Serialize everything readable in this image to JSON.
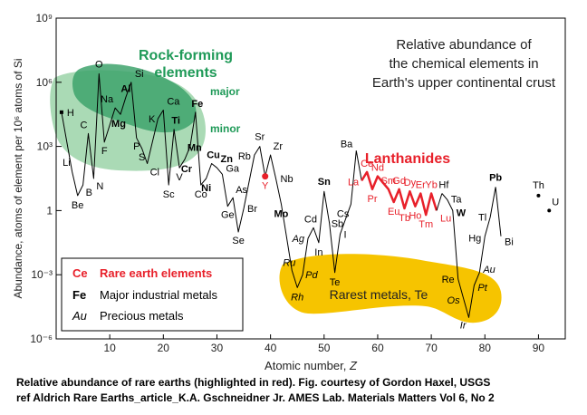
{
  "chart_data": {
    "type": "line",
    "title": "Relative abundance of the chemical elements in Earth's upper continental crust",
    "title_lines": [
      "Relative abundance of",
      "the chemical elements in",
      "Earth's upper continental crust"
    ],
    "xlabel": "Atomic number, Z",
    "ylabel": "Abundance, atoms of element per 10⁶ atoms of Si",
    "xlim": [
      0,
      95
    ],
    "ylim_log10": [
      -6,
      9
    ],
    "y_scale": "log",
    "xticks": [
      10,
      20,
      30,
      40,
      50,
      60,
      70,
      80,
      90
    ],
    "yticks": [
      {
        "exp": -6,
        "label": "10⁻⁶"
      },
      {
        "exp": -3,
        "label": "10⁻³"
      },
      {
        "exp": 0,
        "label": "1"
      },
      {
        "exp": 3,
        "label": "10³"
      },
      {
        "exp": 6,
        "label": "10⁶"
      },
      {
        "exp": 9,
        "label": "10⁹"
      }
    ],
    "grid": false,
    "legend": {
      "position": "bottom-left",
      "entries": [
        {
          "symbol": "Ce",
          "label": "Rare earth elements",
          "style": "rare-earth"
        },
        {
          "symbol": "Fe",
          "label": "Major industrial metals",
          "style": "major"
        },
        {
          "symbol": "Au",
          "label": "Precious metals",
          "style": "precious"
        }
      ]
    },
    "regions": [
      {
        "label": "Rock-forming elements",
        "color": "#1f9a58"
      },
      {
        "label": "major",
        "color": "#1f9a58"
      },
      {
        "label": "minor",
        "color": "#1f9a58"
      },
      {
        "label": "Lanthanides",
        "color": "#e8202a"
      },
      {
        "label": "Rarest metals, Te",
        "color": "#f3c200"
      }
    ],
    "colors": {
      "main_line": "#000000",
      "rare_earth": "#e8202a",
      "rock_dark": "#2e9a60",
      "rock_light": "#8fcf9f",
      "rarest": "#f6c400"
    },
    "series": [
      {
        "points": [
          {
            "z": 1,
            "y": 4.6,
            "label": "H"
          },
          {
            "z": 3,
            "y": 1.8,
            "label": "Li"
          },
          {
            "z": 4,
            "y": 0.7,
            "label": "Be"
          },
          {
            "z": 5,
            "y": 1.2,
            "label": "B"
          },
          {
            "z": 6,
            "y": 3.6,
            "label": "C"
          },
          {
            "z": 7,
            "y": 1.5,
            "label": "N"
          },
          {
            "z": 8,
            "y": 6.4,
            "label": "O"
          },
          {
            "z": 9,
            "y": 3.2,
            "label": "F"
          },
          {
            "z": 11,
            "y": 4.8,
            "label": "Na"
          },
          {
            "z": 12,
            "y": 4.5,
            "label": "Mg"
          },
          {
            "z": 13,
            "y": 5.3,
            "label": "Al"
          },
          {
            "z": 14,
            "y": 6.0,
            "label": "Si"
          },
          {
            "z": 15,
            "y": 3.4,
            "label": "P"
          },
          {
            "z": 16,
            "y": 2.9,
            "label": "S"
          },
          {
            "z": 17,
            "y": 2.2,
            "label": "Cl"
          },
          {
            "z": 19,
            "y": 4.3,
            "label": "K"
          },
          {
            "z": 20,
            "y": 4.7,
            "label": "Ca"
          },
          {
            "z": 21,
            "y": 1.2,
            "label": "Sc"
          },
          {
            "z": 22,
            "y": 3.8,
            "label": "Ti"
          },
          {
            "z": 23,
            "y": 2.0,
            "label": "V"
          },
          {
            "z": 24,
            "y": 2.4,
            "label": "Cr"
          },
          {
            "z": 25,
            "y": 3.0,
            "label": "Mn"
          },
          {
            "z": 26,
            "y": 4.6,
            "label": "Fe"
          },
          {
            "z": 27,
            "y": 1.2,
            "label": "Co"
          },
          {
            "z": 28,
            "y": 1.5,
            "label": "Ni"
          },
          {
            "z": 29,
            "y": 2.2,
            "label": "Cu"
          },
          {
            "z": 30,
            "y": 2.0,
            "label": "Zn"
          },
          {
            "z": 31,
            "y": 1.7,
            "label": "Ga"
          },
          {
            "z": 32,
            "y": 0.2,
            "label": "Ge"
          },
          {
            "z": 33,
            "y": 0.6,
            "label": "As"
          },
          {
            "z": 34,
            "y": -1.0,
            "label": "Se"
          },
          {
            "z": 35,
            "y": 0.1,
            "label": "Br"
          },
          {
            "z": 37,
            "y": 2.6,
            "label": "Rb"
          },
          {
            "z": 38,
            "y": 3.0,
            "label": "Sr"
          },
          {
            "z": 39,
            "y": 1.6,
            "label": "Y"
          },
          {
            "z": 40,
            "y": 2.6,
            "label": "Zr"
          },
          {
            "z": 41,
            "y": 1.5,
            "label": "Nb"
          },
          {
            "z": 42,
            "y": 0.3,
            "label": "Mo"
          },
          {
            "z": 44,
            "y": -2.8,
            "label": "Ru"
          },
          {
            "z": 45,
            "y": -3.6,
            "label": "Rh"
          },
          {
            "z": 46,
            "y": -3.0,
            "label": "Pd"
          },
          {
            "z": 47,
            "y": -1.3,
            "label": "Ag"
          },
          {
            "z": 48,
            "y": -0.8,
            "label": "Cd"
          },
          {
            "z": 49,
            "y": -1.5,
            "label": "In"
          },
          {
            "z": 50,
            "y": 0.9,
            "label": "Sn"
          },
          {
            "z": 51,
            "y": -0.6,
            "label": "Sb"
          },
          {
            "z": 52,
            "y": -2.9,
            "label": "Te"
          },
          {
            "z": 53,
            "y": -1.1,
            "label": "I"
          },
          {
            "z": 55,
            "y": 0.3,
            "label": "Cs"
          },
          {
            "z": 56,
            "y": 2.8,
            "label": "Ba"
          },
          {
            "z": 82,
            "y": 1.1,
            "label": "Pb"
          },
          {
            "z": 83,
            "y": -1.2,
            "label": "Bi"
          }
        ]
      },
      {
        "name": "Lanthanides",
        "points": [
          {
            "z": 57,
            "y": 1.4,
            "label": "La"
          },
          {
            "z": 58,
            "y": 1.8,
            "label": "Ce"
          },
          {
            "z": 59,
            "y": 1.0,
            "label": "Pr"
          },
          {
            "z": 60,
            "y": 1.6,
            "label": "Nd"
          },
          {
            "z": 62,
            "y": 1.0,
            "label": "Sm"
          },
          {
            "z": 63,
            "y": 0.4,
            "label": "Eu"
          },
          {
            "z": 64,
            "y": 1.0,
            "label": "Gd"
          },
          {
            "z": 65,
            "y": 0.1,
            "label": "Tb"
          },
          {
            "z": 66,
            "y": 0.9,
            "label": "Dy"
          },
          {
            "z": 67,
            "y": 0.2,
            "label": "Ho"
          },
          {
            "z": 68,
            "y": 0.8,
            "label": "Er"
          },
          {
            "z": 69,
            "y": -0.2,
            "label": "Tm"
          },
          {
            "z": 70,
            "y": 0.8,
            "label": "Yb"
          },
          {
            "z": 71,
            "y": 0.0,
            "label": "Lu"
          }
        ]
      },
      {
        "points": [
          {
            "z": 72,
            "y": 0.8,
            "label": "Hf"
          },
          {
            "z": 73,
            "y": 0.5,
            "label": "Ta"
          },
          {
            "z": 74,
            "y": 0.0,
            "label": "W"
          },
          {
            "z": 75,
            "y": -3.2,
            "label": "Re"
          },
          {
            "z": 76,
            "y": -4.1,
            "label": "Os"
          },
          {
            "z": 77,
            "y": -5.0,
            "label": "Ir"
          },
          {
            "z": 78,
            "y": -3.5,
            "label": "Pt"
          },
          {
            "z": 79,
            "y": -2.9,
            "label": "Au"
          },
          {
            "z": 80,
            "y": -1.2,
            "label": "Hg"
          },
          {
            "z": 81,
            "y": -0.3,
            "label": "Tl"
          },
          {
            "z": 82,
            "y": 1.1,
            "label": "Pb"
          }
        ]
      }
    ],
    "isolated_points": [
      {
        "z": 90,
        "y": 0.7,
        "label": "Th"
      },
      {
        "z": 92,
        "y": 0.0,
        "label": "U"
      }
    ]
  },
  "caption": {
    "line1": "Relative abundance of rare earths (highlighted in red). Fig. courtesy of Gordon Haxel, USGS",
    "line2": "ref Aldrich Rare Earths_article_K.A. Gschneidner Jr. AMES Lab. Materials Matters Vol 6, No 2"
  }
}
